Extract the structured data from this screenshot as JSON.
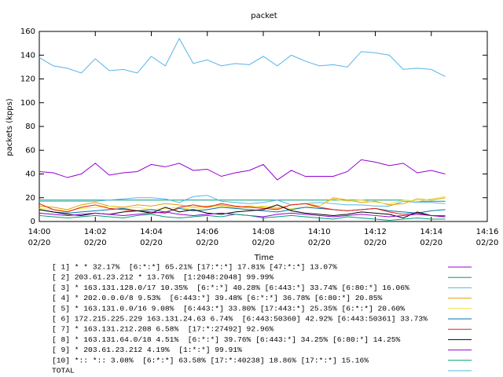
{
  "chart_data": {
    "type": "line",
    "title": "packet",
    "x_label": "Time",
    "y_label": "packets (kpps)",
    "x": [
      0,
      0.5,
      1,
      1.5,
      2,
      2.5,
      3,
      3.5,
      4,
      4.5,
      5,
      5.5,
      6,
      6.5,
      7,
      7.5,
      8,
      8.5,
      9,
      9.5,
      10,
      10.5,
      11,
      11.5,
      12,
      12.5,
      13,
      13.5,
      14,
      14.5
    ],
    "xlim": [
      0,
      16
    ],
    "xticks": [
      {
        "value": 0,
        "label": [
          "14:00",
          "02/20"
        ]
      },
      {
        "value": 2,
        "label": [
          "14:02",
          "02/20"
        ]
      },
      {
        "value": 4,
        "label": [
          "14:04",
          "02/20"
        ]
      },
      {
        "value": 6,
        "label": [
          "14:06",
          "02/20"
        ]
      },
      {
        "value": 8,
        "label": [
          "14:08",
          "02/20"
        ]
      },
      {
        "value": 10,
        "label": [
          "14:10",
          "02/20"
        ]
      },
      {
        "value": 12,
        "label": [
          "14:12",
          "02/20"
        ]
      },
      {
        "value": 14,
        "label": [
          "14:14",
          "02/20"
        ]
      },
      {
        "value": 16,
        "label": [
          "14:16",
          "02/20"
        ]
      }
    ],
    "ylim": [
      0,
      160
    ],
    "yticks": [
      0,
      20,
      40,
      60,
      80,
      100,
      120,
      140,
      160
    ],
    "series": [
      {
        "name": "[ 1] * * 32.17%  [6:*:*] 65.21% [17:*:*] 17.81% [47:*:*] 13.07%",
        "color": "#9400d3",
        "values": [
          42,
          41,
          37,
          40,
          49,
          39,
          41,
          42,
          48,
          46,
          49,
          43,
          44,
          38,
          41,
          43,
          48,
          35,
          43,
          38,
          38,
          38,
          42,
          52,
          50,
          47,
          49,
          41,
          43,
          40
        ]
      },
      {
        "name": "[ 2] 203.61.23.212 * 13.76%  [1:2048:2048] 99.99%",
        "color": "#009e73",
        "values": [
          18,
          18,
          18,
          18,
          18,
          18,
          18,
          18,
          18,
          18,
          18,
          18,
          18,
          18,
          18,
          18,
          18,
          18,
          18,
          18,
          18,
          18,
          18,
          18,
          18,
          18,
          18,
          17,
          17,
          17
        ]
      },
      {
        "name": "[ 3] * 163.131.128.0/17 10.35%  [6:*:*] 40.28% [6:443:*] 33.74% [6:80:*] 16.06%",
        "color": "#56b4e9",
        "values": [
          17,
          17,
          17,
          17,
          17,
          18,
          19,
          20,
          20,
          19,
          16,
          21,
          22,
          17,
          16,
          15,
          16,
          18,
          14,
          15,
          16,
          15,
          14,
          14,
          13,
          13,
          17,
          16,
          16,
          15
        ]
      },
      {
        "name": "[ 4] * 202.0.0.0/8 9.53%  [6:443:*] 39.48% [6:*:*] 36.78% [6:80:*] 20.85%",
        "color": "#e69f00",
        "values": [
          13,
          12,
          10,
          14,
          16,
          13,
          12,
          14,
          13,
          15,
          14,
          12,
          13,
          14,
          12,
          13,
          12,
          11,
          14,
          15,
          13,
          20,
          18,
          16,
          17,
          14,
          15,
          19,
          18,
          20
        ]
      },
      {
        "name": "[ 5] * 163.131.0.0/16 9.08%  [6:443:*] 33.80% [17:443:*] 25.35% [6:*:*] 20.60%",
        "color": "#f0e442",
        "values": [
          11,
          10,
          9,
          11,
          12,
          13,
          11,
          12,
          10,
          11,
          12,
          10,
          12,
          13,
          11,
          12,
          13,
          12,
          11,
          12,
          13,
          19,
          17,
          18,
          16,
          15,
          18,
          17,
          19,
          21
        ]
      },
      {
        "name": "[ 6] 172.215.225.229 163.131.24.63 6.74%  [6:443:50360] 42.92% [6:443:50361] 33.73%",
        "color": "#0072b2",
        "values": [
          10,
          8,
          7,
          8,
          9,
          10,
          11,
          9,
          10,
          8,
          11,
          9,
          10,
          12,
          11,
          10,
          9,
          8,
          10,
          12,
          11,
          10,
          9,
          10,
          11,
          9,
          8,
          7,
          9,
          10
        ]
      },
      {
        "name": "[ 7] * 163.131.212.208 6.58%  [17:*:27492] 92.96%",
        "color": "#e51e10",
        "values": [
          15,
          10,
          8,
          12,
          14,
          11,
          10,
          9,
          8,
          7,
          12,
          14,
          12,
          15,
          13,
          12,
          11,
          10,
          14,
          15,
          12,
          10,
          9,
          10,
          11,
          8,
          6,
          7,
          5,
          5
        ]
      },
      {
        "name": "[ 8] * 163.131.64.0/18 4.51%  [6:*:*] 39.76% [6:443:*] 34.25% [6:80:*] 14.25%",
        "color": "#000000",
        "values": [
          10,
          8,
          6,
          5,
          7,
          6,
          8,
          9,
          7,
          12,
          8,
          10,
          7,
          6,
          8,
          9,
          10,
          14,
          9,
          7,
          6,
          5,
          6,
          8,
          7,
          6,
          3,
          8,
          5,
          4
        ]
      },
      {
        "name": "[ 9] * 203.61.23.212 4.19%  [1:*:*] 99.91%",
        "color": "#9400d3",
        "values": [
          7,
          6,
          5,
          6,
          7,
          6,
          5,
          6,
          7,
          8,
          6,
          5,
          6,
          7,
          6,
          5,
          4,
          6,
          7,
          6,
          5,
          4,
          5,
          6,
          5,
          4,
          5,
          6,
          5,
          4
        ]
      },
      {
        "name": "[10] *:: *:: 3.08%  [6:*:*] 63.58% [17:*:40238] 18.86% [17:*:*] 15.16%",
        "color": "#009e73",
        "values": [
          5,
          4,
          3,
          4,
          5,
          4,
          3,
          5,
          6,
          4,
          3,
          4,
          5,
          4,
          6,
          5,
          3,
          4,
          5,
          4,
          3,
          2,
          4,
          3,
          2,
          1,
          2,
          3,
          2,
          2
        ]
      },
      {
        "name": "TOTAL",
        "color": "#56b4e9",
        "values": [
          138,
          131,
          129,
          125,
          137,
          127,
          128,
          125,
          139,
          131,
          154,
          133,
          136,
          131,
          133,
          132,
          139,
          131,
          140,
          135,
          131,
          132,
          130,
          143,
          142,
          140,
          128,
          129,
          128,
          122
        ]
      }
    ]
  }
}
